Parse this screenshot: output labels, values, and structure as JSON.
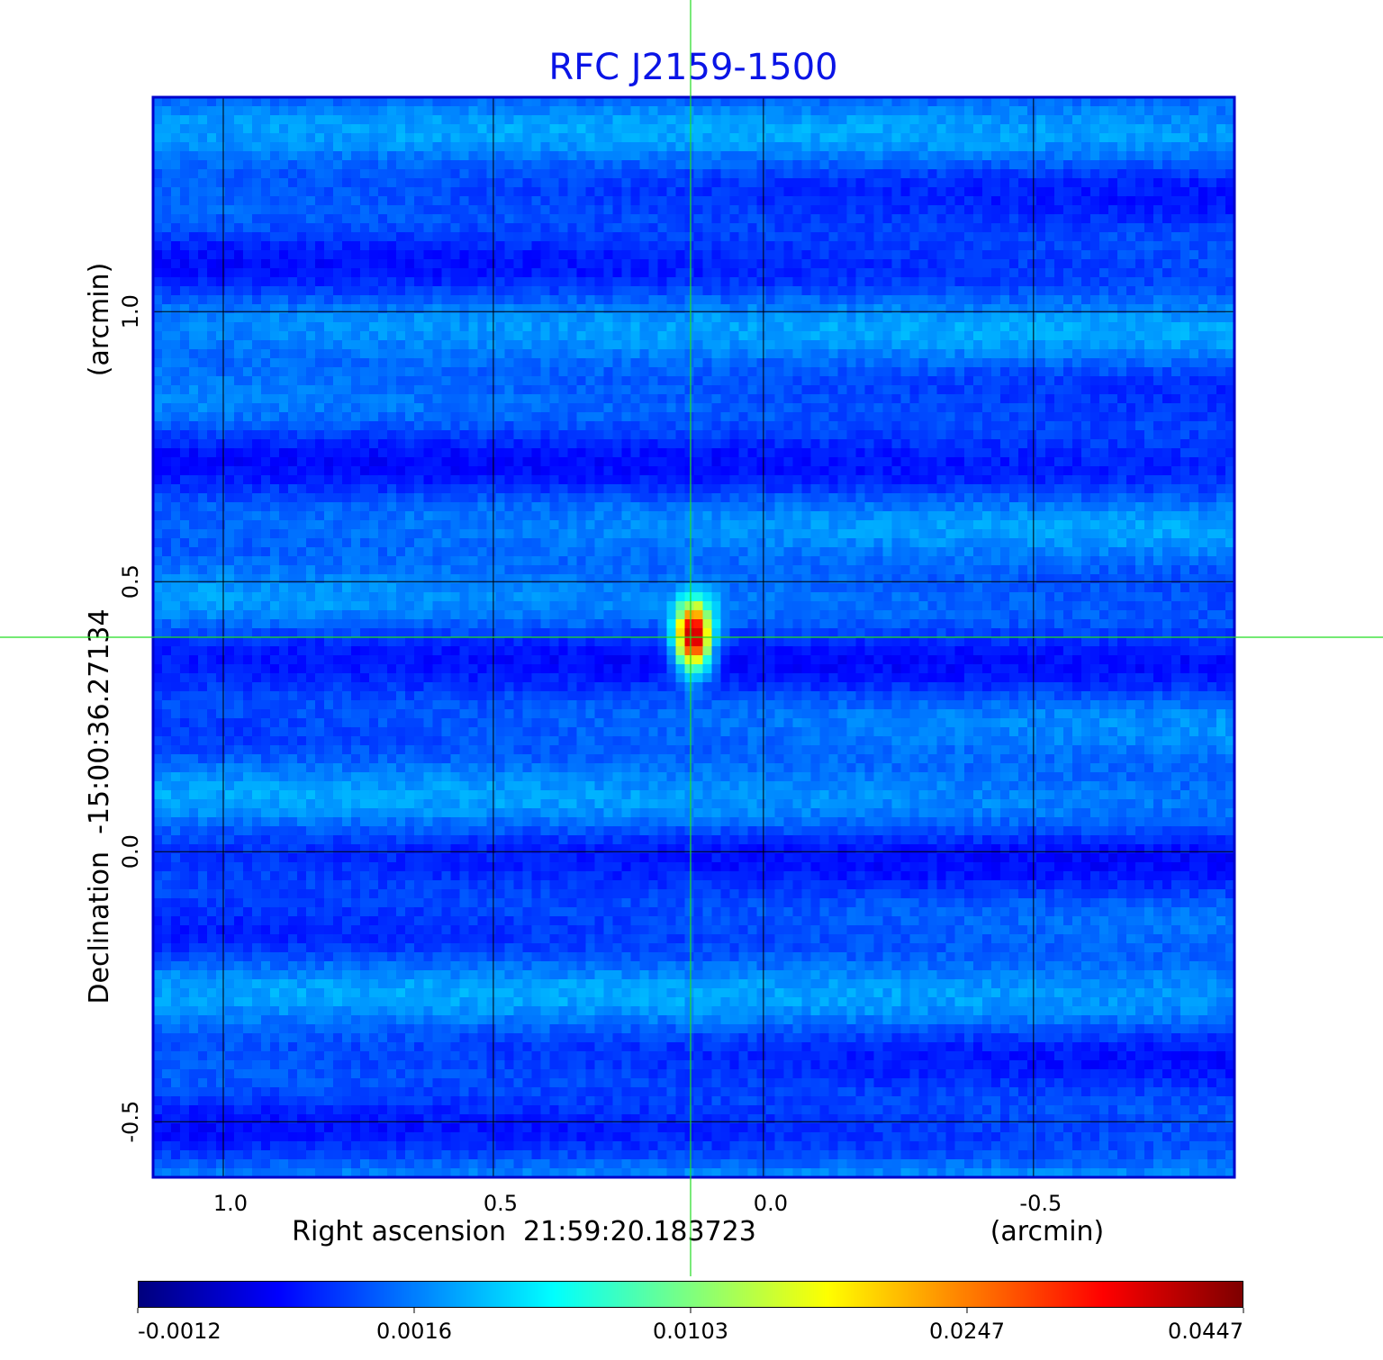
{
  "chart_data": {
    "type": "heatmap",
    "title": "RFC J2159-1500",
    "xlabel": "Right ascension  21:59:20.183723",
    "xunit": "(arcmin)",
    "ylabel": "Declination  -15:00:36.27134",
    "yunit": "(arcmin)",
    "xlim": [
      1.13,
      -0.872
    ],
    "ylim": [
      -0.603,
      1.397
    ],
    "x_ticks": [
      {
        "value": 1.0,
        "label": "1.0"
      },
      {
        "value": 0.5,
        "label": "0.5"
      },
      {
        "value": 0.0,
        "label": "0.0"
      },
      {
        "value": -0.5,
        "label": "-0.5"
      }
    ],
    "y_ticks": [
      {
        "value": 1.0,
        "label": "1.0"
      },
      {
        "value": 0.5,
        "label": "0.5"
      },
      {
        "value": 0.0,
        "label": "0.0"
      },
      {
        "value": -0.5,
        "label": "-0.5"
      }
    ],
    "grid": true,
    "crosshair": {
      "x": 0.135,
      "y": 0.397
    },
    "source": {
      "x": 0.13,
      "y": 0.397,
      "peak": 0.0447,
      "sigma_x": 0.02,
      "sigma_y": 0.04
    },
    "background_level": [
      -0.0012,
      0.0016
    ],
    "colormap": "jet",
    "colorbar_ticks": [
      "-0.0012",
      "0.0016",
      "0.0103",
      "0.0247",
      "0.0447"
    ],
    "colors": {
      "title": "#0a14e6",
      "crosshair": "#22dd22",
      "grid": "#000000",
      "frame": "#0000cc"
    }
  }
}
